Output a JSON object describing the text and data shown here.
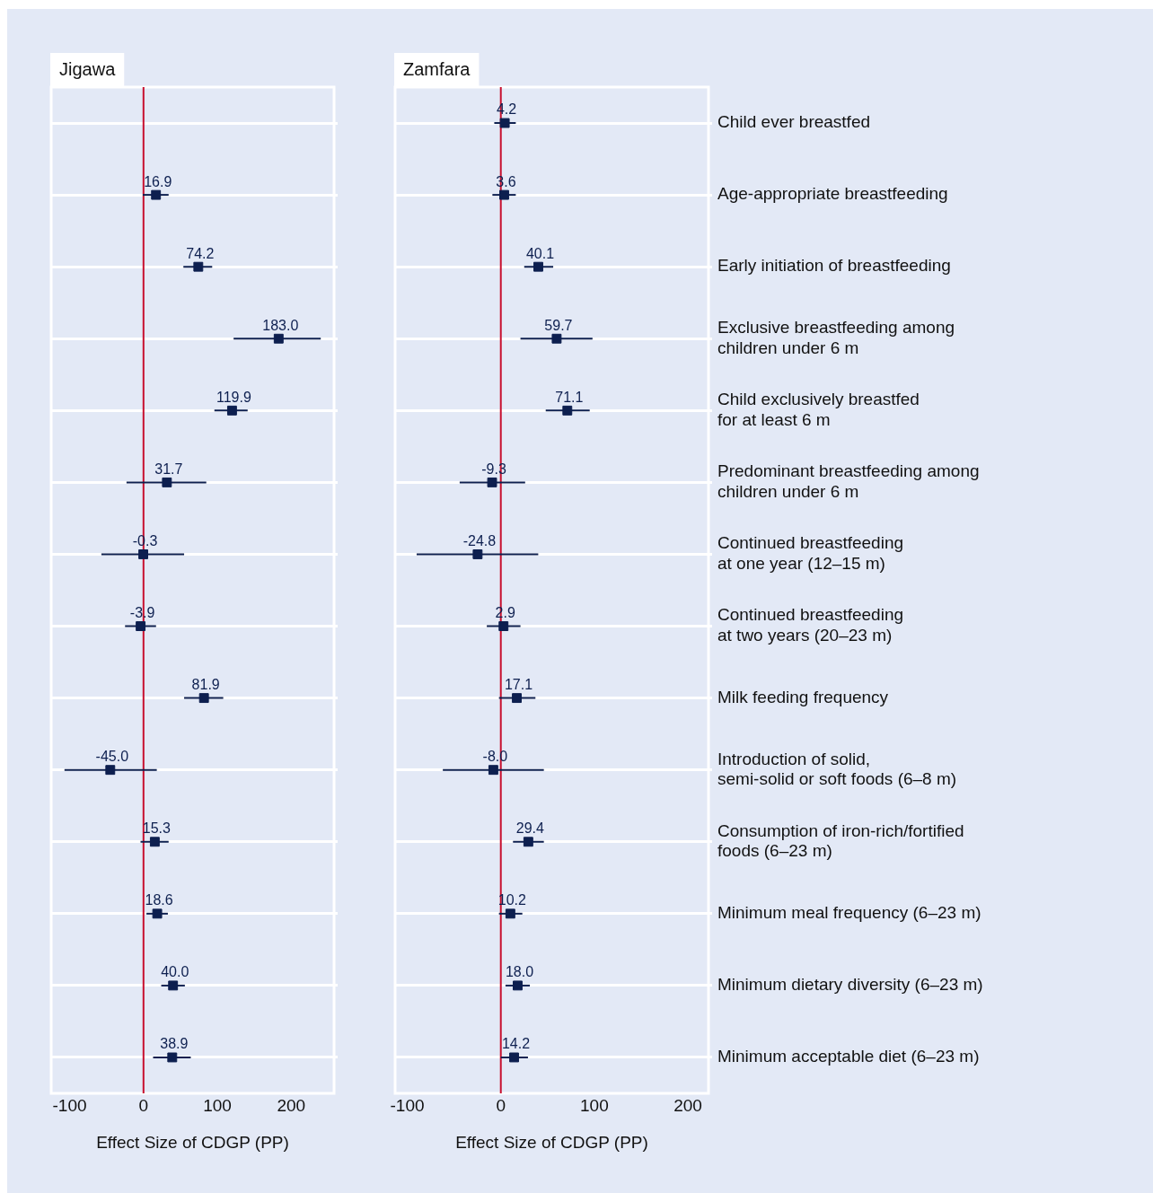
{
  "chart_data": [
    {
      "type": "scatter",
      "title": "Jigawa",
      "orientation": "horizontal",
      "categories": [
        null,
        null,
        null,
        null,
        null,
        null,
        null,
        null,
        null,
        null,
        null,
        null,
        null,
        null
      ],
      "values": [
        null,
        16.9,
        74.2,
        183.0,
        119.9,
        31.7,
        -0.3,
        -3.9,
        81.9,
        -45.0,
        15.3,
        18.6,
        40.0,
        38.9
      ],
      "errors": [
        null,
        [
          -1,
          34
        ],
        [
          54,
          93
        ],
        [
          122,
          240
        ],
        [
          96,
          141
        ],
        [
          -23,
          85
        ],
        [
          -57,
          55
        ],
        [
          -25,
          17
        ],
        [
          55,
          108
        ],
        [
          -107,
          18
        ],
        [
          -4,
          34
        ],
        [
          4,
          33
        ],
        [
          24,
          56
        ],
        [
          13,
          64
        ]
      ],
      "value_labels": [
        null,
        "16.9",
        "74.2",
        "183.0",
        "119.9",
        "31.7",
        "-0.3",
        "-3.9",
        "81.9",
        "-45.0",
        "15.3",
        "18.6",
        "40.0",
        "38.9"
      ],
      "color": "#0d1f4f",
      "marker": "square",
      "xlim": [
        -125,
        258
      ],
      "xticks": [
        -100,
        0,
        100,
        200
      ],
      "xlabel": "Effect Size of CDGP (PP)",
      "ref_lines": [
        {
          "axis": "x",
          "value": 0,
          "color": "#c8102e"
        }
      ],
      "grid": "y"
    },
    {
      "type": "scatter",
      "title": "Zamfara",
      "orientation": "horizontal",
      "categories": [
        "Child ever breastfed",
        "Age-appropriate breastfeeding",
        "Early initiation of breastfeeding",
        "Exclusive breastfeeding among\nchildren under 6 m",
        "Child exclusively breastfed\nfor at least 6 m",
        "Predominant breastfeeding among\nchildren under 6 m",
        "Continued breastfeeding\nat one year (12–15 m)",
        "Continued breastfeeding\nat two years (20–23 m)",
        "Milk feeding frequency",
        "Introduction of solid,\nsemi-solid or soft foods (6–8 m)",
        "Consumption of iron-rich/fortified\nfoods (6–23 m)",
        "Minimum meal frequency (6–23 m)",
        "Minimum dietary diversity (6–23 m)",
        "Minimum acceptable diet (6–23 m)"
      ],
      "values": [
        4.2,
        3.6,
        40.1,
        59.7,
        71.1,
        -9.3,
        -24.8,
        2.9,
        17.1,
        -8.0,
        29.4,
        10.2,
        18.0,
        14.2
      ],
      "errors": [
        [
          -7,
          16
        ],
        [
          -9,
          16
        ],
        [
          25,
          56
        ],
        [
          21,
          98
        ],
        [
          48,
          95
        ],
        [
          -44,
          26
        ],
        [
          -90,
          40
        ],
        [
          -15,
          21
        ],
        [
          -2,
          37
        ],
        [
          -62,
          46
        ],
        [
          13,
          46
        ],
        [
          -2,
          23
        ],
        [
          5,
          31
        ],
        [
          0,
          29
        ]
      ],
      "value_labels": [
        "4.2",
        "3.6",
        "40.1",
        "59.7",
        "71.1",
        "-9.3",
        "-24.8",
        "2.9",
        "17.1",
        "-8.0",
        "29.4",
        "10.2",
        "18.0",
        "14.2"
      ],
      "color": "#0d1f4f",
      "marker": "square",
      "xlim": [
        -113,
        222
      ],
      "xticks": [
        -100,
        0,
        100,
        200
      ],
      "xlabel": "Effect Size of CDGP (PP)",
      "ref_lines": [
        {
          "axis": "x",
          "value": 0,
          "color": "#c8102e"
        }
      ],
      "grid": "y"
    }
  ]
}
